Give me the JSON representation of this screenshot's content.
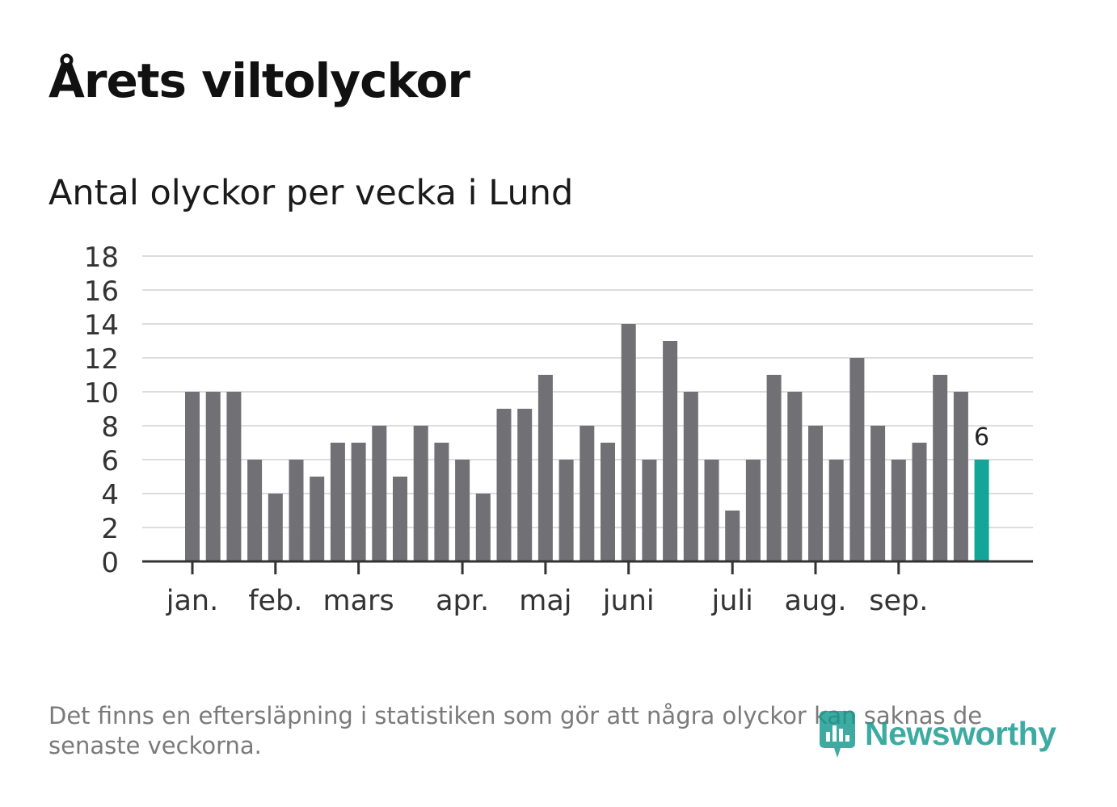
{
  "title": "Årets viltolyckor",
  "subtitle": "Antal olyckor per vecka i Lund",
  "footnote": "Det finns en eftersläpning i statistiken som gör att några olyckor kan saknas de senaste veckorna.",
  "brand": {
    "name": "Newsworthy",
    "icon": "newsworthy-logo-icon",
    "color": "#14998f"
  },
  "colors": {
    "bar": "#707075",
    "highlight": "#13a597",
    "grid": "#dddddd",
    "axis": "#333333",
    "tick_text": "#333333"
  },
  "chart_data": {
    "type": "bar",
    "title": "Antal olyckor per vecka i Lund",
    "xlabel": "",
    "ylabel": "",
    "ylim": [
      0,
      18
    ],
    "yticks": [
      0,
      2,
      4,
      6,
      8,
      10,
      12,
      14,
      16,
      18
    ],
    "grid": true,
    "values": [
      10,
      10,
      10,
      6,
      4,
      6,
      5,
      7,
      7,
      8,
      5,
      8,
      7,
      6,
      4,
      9,
      9,
      11,
      6,
      8,
      7,
      14,
      6,
      13,
      10,
      6,
      3,
      6,
      11,
      10,
      8,
      6,
      12,
      8,
      6,
      7,
      11,
      10,
      6
    ],
    "highlight_index": 38,
    "highlight_label": "6",
    "month_labels": [
      {
        "label": "jan.",
        "bar_index": 0
      },
      {
        "label": "feb.",
        "bar_index": 4
      },
      {
        "label": "mars",
        "bar_index": 8
      },
      {
        "label": "apr.",
        "bar_index": 13
      },
      {
        "label": "maj",
        "bar_index": 17
      },
      {
        "label": "juni",
        "bar_index": 21
      },
      {
        "label": "juli",
        "bar_index": 26
      },
      {
        "label": "aug.",
        "bar_index": 30
      },
      {
        "label": "sep.",
        "bar_index": 34
      }
    ]
  }
}
